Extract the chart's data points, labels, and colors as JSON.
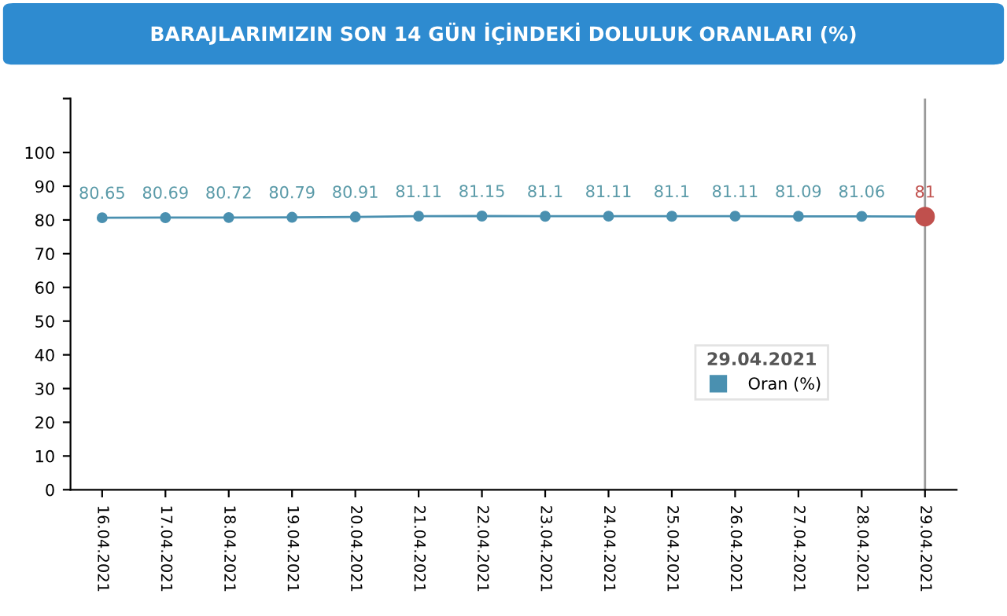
{
  "chart_data": {
    "type": "line",
    "title": "BARAJLARIMIZIN SON 14 GÜN İÇİNDEKİ DOLULUK ORANLARI (%)",
    "categories": [
      "16.04.2021",
      "17.04.2021",
      "18.04.2021",
      "19.04.2021",
      "20.04.2021",
      "21.04.2021",
      "22.04.2021",
      "23.04.2021",
      "24.04.2021",
      "25.04.2021",
      "26.04.2021",
      "27.04.2021",
      "28.04.2021",
      "29.04.2021"
    ],
    "series": [
      {
        "name": "Oran (%)",
        "color": "#4a90b0",
        "colors": [
          "#4a90b0",
          "#4a90b0",
          "#4a90b0",
          "#4a90b0",
          "#4a90b0",
          "#4a90b0",
          "#4a90b0",
          "#4a90b0",
          "#4a90b0",
          "#4a90b0",
          "#4a90b0",
          "#4a90b0",
          "#4a90b0",
          "#c0504d"
        ],
        "values": [
          80.65,
          80.69,
          80.72,
          80.79,
          80.91,
          81.11,
          81.15,
          81.1,
          81.11,
          81.1,
          81.11,
          81.09,
          81.06,
          81
        ]
      }
    ],
    "ylim": [
      0,
      116
    ],
    "yticks": [
      0,
      10,
      20,
      30,
      40,
      50,
      60,
      70,
      80,
      90,
      100,
      {
        "value": 116,
        "label": null
      }
    ],
    "data_labels": true,
    "marker": "circle",
    "line_style": "solid",
    "grid": false,
    "legend": "right",
    "legend_title": "29.04.2021",
    "ref_lines": [
      {
        "axis": "x",
        "value": "29.04.2021",
        "label": null,
        "color": "#999999"
      }
    ]
  }
}
